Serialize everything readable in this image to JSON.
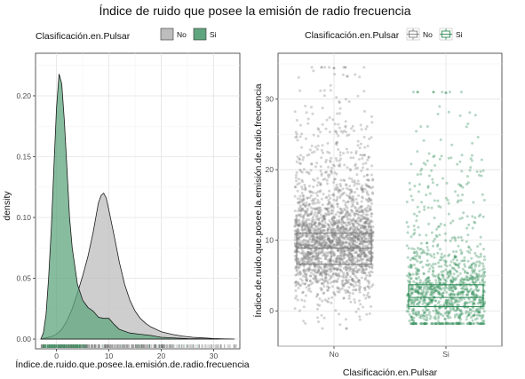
{
  "figure": {
    "title": "Índice de ruido que posee la emisión de radio frecuencia"
  },
  "chart_data": [
    {
      "type": "area",
      "subtype": "density",
      "legend": {
        "title": "Clasificación.en.Pulsar",
        "entries": [
          "No",
          "Si"
        ],
        "placement": "top"
      },
      "xlabel": "Índice.de.ruido.que.posee.la.emisión.de.radio.frecuencia",
      "ylabel": "density",
      "xlim": [
        -4,
        35
      ],
      "ylim": [
        -0.008,
        0.235
      ],
      "x_ticks": [
        0,
        10,
        20,
        30
      ],
      "y_ticks": [
        0.0,
        0.05,
        0.1,
        0.15,
        0.2
      ],
      "y_tick_labels": [
        "0.00",
        "0.05",
        "0.10",
        "0.15",
        "0.20"
      ],
      "grid": true,
      "rug": true,
      "series": [
        {
          "name": "No",
          "color": "#bdbdbd",
          "x": [
            -3,
            -2,
            -1,
            0,
            1,
            2,
            3,
            4,
            5,
            6,
            7,
            8,
            8.5,
            9,
            9.5,
            10,
            11,
            12,
            13,
            14,
            15,
            16,
            17,
            18,
            20,
            22,
            24,
            26,
            28,
            30,
            32,
            34
          ],
          "values": [
            0.0,
            0.001,
            0.002,
            0.004,
            0.008,
            0.015,
            0.025,
            0.038,
            0.052,
            0.068,
            0.088,
            0.112,
            0.118,
            0.12,
            0.116,
            0.106,
            0.085,
            0.063,
            0.045,
            0.032,
            0.023,
            0.017,
            0.013,
            0.01,
            0.006,
            0.004,
            0.0025,
            0.0015,
            0.001,
            0.0005,
            0.0002,
            0.0
          ]
        },
        {
          "name": "Si",
          "color": "#5fa57e",
          "x": [
            -3,
            -2.5,
            -2,
            -1.5,
            -1,
            -0.5,
            0,
            0.5,
            1,
            1.5,
            2,
            2.5,
            3,
            4,
            5,
            6,
            7,
            8,
            9,
            10,
            11,
            12,
            14,
            16,
            18,
            20,
            25,
            31
          ],
          "values": [
            0.0,
            0.005,
            0.02,
            0.05,
            0.09,
            0.14,
            0.19,
            0.218,
            0.21,
            0.18,
            0.14,
            0.1,
            0.075,
            0.045,
            0.032,
            0.026,
            0.023,
            0.018,
            0.017,
            0.017,
            0.012,
            0.008,
            0.005,
            0.004,
            0.003,
            0.0015,
            0.0004,
            0.0
          ]
        }
      ]
    },
    {
      "type": "scatter",
      "subtype": "boxplot-with-jitter",
      "legend": {
        "title": "Clasificación.en.Pulsar",
        "entries": [
          "No",
          "Si"
        ],
        "placement": "top"
      },
      "xlabel": "Clasificación.en.Pulsar",
      "ylabel": "Índice.de.ruido.que.posee.la.emisión.de.radio.frecuencia",
      "categories": [
        "No",
        "Si"
      ],
      "ylim": [
        -5,
        36.5
      ],
      "y_ticks": [
        0,
        10,
        20,
        30
      ],
      "grid": true,
      "series": [
        {
          "name": "No",
          "color": "#808080",
          "box": {
            "lower_whisker": -2.5,
            "q1": 6.6,
            "median": 8.9,
            "q3": 11.0,
            "upper_whisker": 34.5
          },
          "points_min": -2.5,
          "points_max": 34.5
        },
        {
          "name": "Si",
          "color": "#2e8b57",
          "box": {
            "lower_whisker": -1.8,
            "q1": 0.6,
            "median": 1.9,
            "q3": 3.7,
            "upper_whisker": 31.0
          },
          "points_min": -1.8,
          "points_max": 31.0
        }
      ]
    }
  ]
}
